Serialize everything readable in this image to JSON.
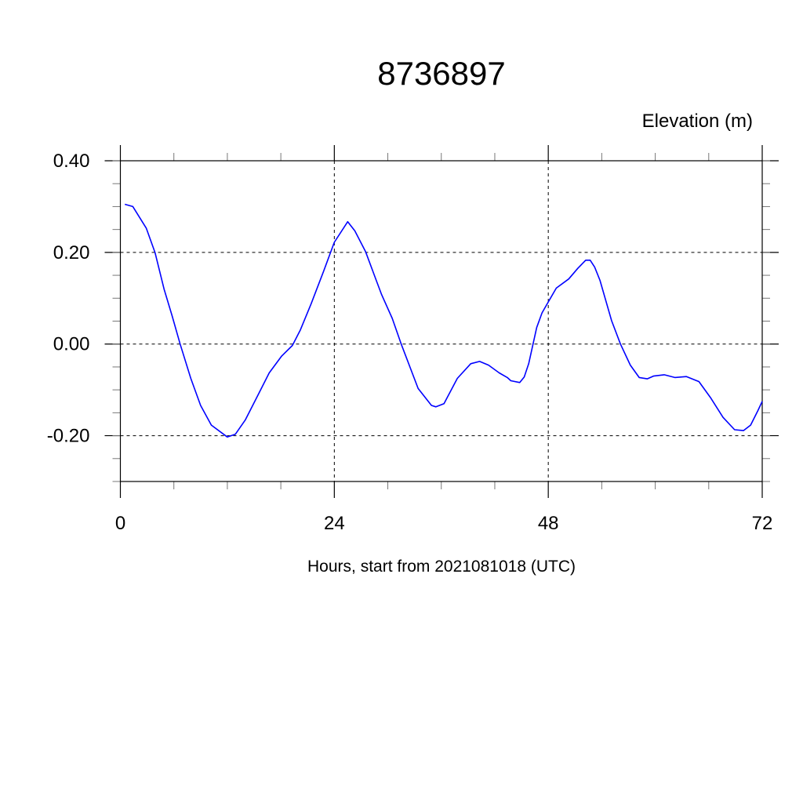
{
  "chart_data": {
    "type": "line",
    "title": "8736897",
    "ylabel": "Elevation (m)",
    "xlabel": "Hours, start from 2021081018 (UTC)",
    "xlim": [
      0,
      72
    ],
    "ylim": [
      -0.3,
      0.4
    ],
    "x_ticks": [
      0,
      24,
      48,
      72
    ],
    "x_tick_labels": [
      "0",
      "24",
      "48",
      "72"
    ],
    "x_minor_step": 6,
    "y_ticks": [
      0.4,
      0.2,
      0.0,
      -0.2
    ],
    "y_tick_labels": [
      "0.40",
      "0.20",
      "0.00",
      "-0.20"
    ],
    "y_minor_step": 0.05,
    "grid": true,
    "grid_style": "dashed",
    "series": [
      {
        "color": "#0000ff",
        "x": [
          0.5,
          1.4,
          2.9,
          3.9,
          4.9,
          5.8,
          6.7,
          7.9,
          9.0,
          10.2,
          12.0,
          12.9,
          14.0,
          15.5,
          16.7,
          18.1,
          19.3,
          20.2,
          21.4,
          22.8,
          24.0,
          25.5,
          26.3,
          27.5,
          28.7,
          29.3,
          30.5,
          31.5,
          33.4,
          34.9,
          35.4,
          36.3,
          37.8,
          39.3,
          40.3,
          41.3,
          42.5,
          43.4,
          43.8,
          44.8,
          45.3,
          45.8,
          46.7,
          47.3,
          47.8,
          48.9,
          50.3,
          51.3,
          52.2,
          52.7,
          53.2,
          53.8,
          55.1,
          56.1,
          57.2,
          58.2,
          59.1,
          59.8,
          61.0,
          62.2,
          63.5,
          64.9,
          66.2,
          67.6,
          68.9,
          69.9,
          70.7,
          71.5,
          72.0
        ],
        "y": [
          0.305,
          0.3,
          0.253,
          0.199,
          0.12,
          0.062,
          0.0,
          -0.075,
          -0.134,
          -0.177,
          -0.203,
          -0.197,
          -0.166,
          -0.109,
          -0.063,
          -0.026,
          -0.003,
          0.031,
          0.088,
          0.159,
          0.222,
          0.267,
          0.247,
          0.202,
          0.139,
          0.108,
          0.056,
          0.0,
          -0.097,
          -0.134,
          -0.137,
          -0.13,
          -0.075,
          -0.043,
          -0.038,
          -0.046,
          -0.063,
          -0.073,
          -0.08,
          -0.084,
          -0.072,
          -0.043,
          0.036,
          0.068,
          0.085,
          0.122,
          0.142,
          0.165,
          0.183,
          0.183,
          0.168,
          0.139,
          0.051,
          0.0,
          -0.046,
          -0.073,
          -0.076,
          -0.07,
          -0.067,
          -0.073,
          -0.071,
          -0.082,
          -0.117,
          -0.16,
          -0.187,
          -0.189,
          -0.177,
          -0.146,
          -0.125
        ]
      }
    ]
  }
}
